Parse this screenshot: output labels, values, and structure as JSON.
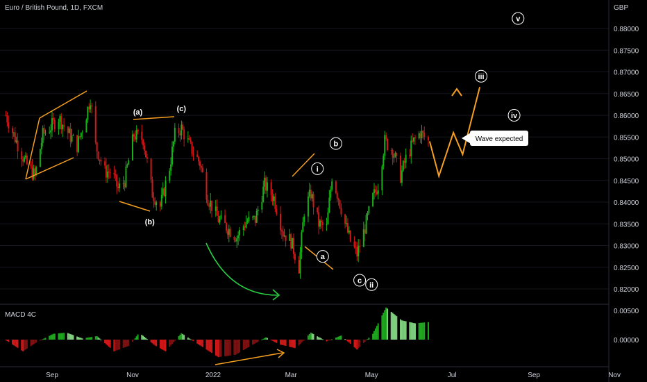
{
  "chart_data": {
    "type": "candlestick",
    "title": "Euro / British Pound, 1D, FXCM",
    "currency": "GBP",
    "price_axis": {
      "ticks": [
        "0.88000",
        "0.87500",
        "0.87000",
        "0.86500",
        "0.86000",
        "0.85500",
        "0.85000",
        "0.84500",
        "0.84000",
        "0.83500",
        "0.83000",
        "0.82500",
        "0.82000"
      ],
      "range": [
        0.8185,
        0.8895
      ]
    },
    "time_axis": {
      "ticks": [
        "Sep",
        "Nov",
        "2022",
        "Mar",
        "May",
        "Jul",
        "Sep",
        "Nov"
      ]
    },
    "series": {
      "close_path": [
        [
          "2021-07-28",
          0.86
        ],
        [
          "2021-08-05",
          0.854
        ],
        [
          "2021-08-12",
          0.849
        ],
        [
          "2021-08-19",
          0.846
        ],
        [
          "2021-08-25",
          0.8555
        ],
        [
          "2021-08-30",
          0.857
        ],
        [
          "2021-09-06",
          0.8595
        ],
        [
          "2021-09-13",
          0.856
        ],
        [
          "2021-09-20",
          0.853
        ],
        [
          "2021-09-26",
          0.859
        ],
        [
          "2021-09-30",
          0.864
        ],
        [
          "2021-10-04",
          0.853
        ],
        [
          "2021-10-11",
          0.847
        ],
        [
          "2021-10-16",
          0.847
        ],
        [
          "2021-10-21",
          0.843
        ],
        [
          "2021-10-26",
          0.845
        ],
        [
          "2021-11-02",
          0.8555
        ],
        [
          "2021-11-09",
          0.8545
        ],
        [
          "2021-11-16",
          0.842
        ],
        [
          "2021-11-22",
          0.839
        ],
        [
          "2021-11-29",
          0.848
        ],
        [
          "2021-12-03",
          0.8555
        ],
        [
          "2021-12-08",
          0.857
        ],
        [
          "2021-12-15",
          0.8525
        ],
        [
          "2021-12-22",
          0.849
        ],
        [
          "2021-12-28",
          0.841
        ],
        [
          "2022-01-05",
          0.836
        ],
        [
          "2022-01-12",
          0.834
        ],
        [
          "2022-01-19",
          0.832
        ],
        [
          "2022-01-26",
          0.8355
        ],
        [
          "2022-02-02",
          0.836
        ],
        [
          "2022-02-09",
          0.844
        ],
        [
          "2022-02-16",
          0.841
        ],
        [
          "2022-02-23",
          0.833
        ],
        [
          "2022-03-01",
          0.831
        ],
        [
          "2022-03-07",
          0.825
        ],
        [
          "2022-03-11",
          0.838
        ],
        [
          "2022-03-16",
          0.842
        ],
        [
          "2022-03-22",
          0.835
        ],
        [
          "2022-03-28",
          0.834
        ],
        [
          "2022-04-01",
          0.846
        ],
        [
          "2022-04-06",
          0.841
        ],
        [
          "2022-04-11",
          0.835
        ],
        [
          "2022-04-15",
          0.831
        ],
        [
          "2022-04-20",
          0.828
        ],
        [
          "2022-04-25",
          0.833
        ],
        [
          "2022-05-02",
          0.841
        ],
        [
          "2022-05-06",
          0.844
        ],
        [
          "2022-05-11",
          0.854
        ],
        [
          "2022-05-17",
          0.852
        ],
        [
          "2022-05-23",
          0.846
        ],
        [
          "2022-05-27",
          0.85
        ],
        [
          "2022-06-02",
          0.854
        ],
        [
          "2022-06-07",
          0.856
        ],
        [
          "2022-06-13",
          0.854
        ]
      ],
      "projection": [
        [
          "2022-06-14",
          0.854
        ],
        [
          "2022-06-21",
          0.846
        ],
        [
          "2022-07-02",
          0.856
        ],
        [
          "2022-07-09",
          0.851
        ],
        [
          "2022-07-22",
          0.8665
        ]
      ]
    },
    "indicator": {
      "name": "MACD 4C",
      "ticks": [
        "0.00500",
        "0.00000"
      ],
      "histogram_path": [
        [
          "2021-07-28",
          -0.0001
        ],
        [
          "2021-08-10",
          -0.002
        ],
        [
          "2021-08-20",
          -0.0005
        ],
        [
          "2021-09-02",
          0.001
        ],
        [
          "2021-09-12",
          0.0012
        ],
        [
          "2021-09-24",
          0.0002
        ],
        [
          "2021-10-05",
          0.0006
        ],
        [
          "2021-10-18",
          -0.002
        ],
        [
          "2021-10-30",
          -0.001
        ],
        [
          "2021-11-06",
          0.0012
        ],
        [
          "2021-11-18",
          -0.001
        ],
        [
          "2021-11-26",
          -0.002
        ],
        [
          "2021-12-08",
          0.0011
        ],
        [
          "2021-12-18",
          -0.0004
        ],
        [
          "2022-01-05",
          -0.003
        ],
        [
          "2022-01-18",
          -0.0026
        ],
        [
          "2022-01-30",
          -0.001
        ],
        [
          "2022-02-10",
          0.0004
        ],
        [
          "2022-02-20",
          -0.0008
        ],
        [
          "2022-03-05",
          -0.0015
        ],
        [
          "2022-03-16",
          0.0012
        ],
        [
          "2022-03-28",
          -0.0003
        ],
        [
          "2022-04-08",
          0.0007
        ],
        [
          "2022-04-20",
          -0.0017
        ],
        [
          "2022-05-02",
          0.001
        ],
        [
          "2022-05-12",
          0.0055
        ],
        [
          "2022-05-24",
          0.0033
        ],
        [
          "2022-06-03",
          0.0028
        ],
        [
          "2022-06-13",
          0.003
        ]
      ]
    },
    "annotations": {
      "wave_labels": [
        {
          "text": "(a)",
          "date": "2021-11-05",
          "price": 0.8608
        },
        {
          "text": "(c)",
          "date": "2021-12-08",
          "price": 0.8616
        },
        {
          "text": "(b)",
          "date": "2021-11-14",
          "price": 0.8355
        },
        {
          "text": "i",
          "date": "2022-03-21",
          "price": 0.8477,
          "circled": true
        },
        {
          "text": "b",
          "date": "2022-04-04",
          "price": 0.8535,
          "circled": true
        },
        {
          "text": "a",
          "date": "2022-03-25",
          "price": 0.8275,
          "circled": true
        },
        {
          "text": "c",
          "date": "2022-04-22",
          "price": 0.822,
          "circled": true
        },
        {
          "text": "ii",
          "date": "2022-05-01",
          "price": 0.821,
          "circled": true
        },
        {
          "text": "iii",
          "date": "2022-07-23",
          "price": 0.869,
          "circled": true
        },
        {
          "text": "iv",
          "date": "2022-08-17",
          "price": 0.86,
          "circled": true
        },
        {
          "text": "v",
          "date": "2022-08-20",
          "price": 0.8823,
          "circled": true
        }
      ],
      "callout": "Wave expected"
    },
    "colors": {
      "background": "#000000",
      "up": "#18b018",
      "down": "#d01818",
      "wave": "#f7a020",
      "callout_bg": "#ffffff",
      "curve": "#29d040"
    }
  }
}
